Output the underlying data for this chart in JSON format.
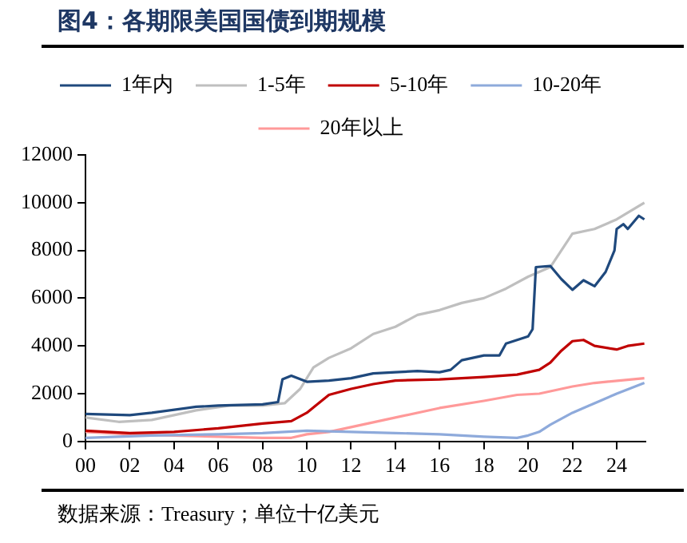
{
  "chart_data": {
    "type": "line",
    "title": "图4：各期限美国国债到期规模",
    "annotations": [
      "数据来源：Treasury；单位十亿美元"
    ],
    "xlim": [
      2000,
      2025.3
    ],
    "xticks": [
      {
        "value": 2000,
        "label": "00"
      },
      {
        "value": 2002,
        "label": "02"
      },
      {
        "value": 2004,
        "label": "04"
      },
      {
        "value": 2006,
        "label": "06"
      },
      {
        "value": 2008,
        "label": "08"
      },
      {
        "value": 2010,
        "label": "10"
      },
      {
        "value": 2012,
        "label": "12"
      },
      {
        "value": 2014,
        "label": "14"
      },
      {
        "value": 2016,
        "label": "16"
      },
      {
        "value": 2018,
        "label": "18"
      },
      {
        "value": 2020,
        "label": "20"
      },
      {
        "value": 2022,
        "label": "22"
      },
      {
        "value": 2024,
        "label": "24"
      }
    ],
    "ylim": [
      0,
      12000
    ],
    "yticks": [
      0,
      2000,
      4000,
      6000,
      8000,
      10000,
      12000
    ],
    "grid": false,
    "legend": "top",
    "marker": "none",
    "line_style": "solid",
    "series": [
      {
        "name": "1年内",
        "color": "#1f497d",
        "x": [
          2000,
          2002,
          2003,
          2005,
          2006,
          2008,
          2008.7,
          2008.9,
          2009.3,
          2010,
          2011,
          2012,
          2013,
          2014,
          2015,
          2016,
          2016.5,
          2017,
          2018,
          2018.7,
          2019,
          2020,
          2020.2,
          2020.35,
          2021,
          2021.5,
          2022,
          2022.5,
          2023,
          2023.5,
          2023.9,
          2024,
          2024.3,
          2024.5,
          2025,
          2025.25
        ],
        "values": [
          1150,
          1100,
          1200,
          1450,
          1500,
          1550,
          1650,
          2600,
          2750,
          2500,
          2550,
          2650,
          2850,
          2900,
          2950,
          2900,
          3000,
          3400,
          3600,
          3600,
          4100,
          4400,
          4700,
          7300,
          7350,
          6800,
          6350,
          6750,
          6500,
          7100,
          8000,
          8900,
          9100,
          8900,
          9450,
          9300
        ]
      },
      {
        "name": "1-5年",
        "color": "#bfbfbf",
        "x": [
          2000,
          2001.5,
          2003,
          2005,
          2006.5,
          2008,
          2009,
          2009.7,
          2010.3,
          2011,
          2012,
          2013,
          2014,
          2015,
          2016,
          2017,
          2018,
          2019,
          2020,
          2021,
          2022,
          2023,
          2024,
          2025.25
        ],
        "values": [
          1000,
          820,
          900,
          1300,
          1500,
          1500,
          1600,
          2200,
          3100,
          3500,
          3900,
          4500,
          4800,
          5300,
          5500,
          5800,
          6000,
          6400,
          6900,
          7300,
          8700,
          8900,
          9300,
          10000
        ]
      },
      {
        "name": "5-10年",
        "color": "#c00000",
        "x": [
          2000,
          2002,
          2004,
          2006,
          2008,
          2009.3,
          2010,
          2011,
          2012,
          2013,
          2014,
          2016,
          2018,
          2019.5,
          2020,
          2020.5,
          2021,
          2021.5,
          2022,
          2022.5,
          2023,
          2024,
          2024.5,
          2025.25
        ],
        "values": [
          450,
          350,
          400,
          550,
          750,
          850,
          1200,
          1950,
          2200,
          2400,
          2550,
          2600,
          2700,
          2800,
          2900,
          3000,
          3300,
          3800,
          4200,
          4250,
          4000,
          3850,
          4000,
          4100
        ]
      },
      {
        "name": "10-20年",
        "color": "#8eaadb",
        "x": [
          2000,
          2003,
          2006,
          2008,
          2010,
          2012,
          2014,
          2016,
          2018,
          2019.5,
          2020,
          2020.5,
          2021,
          2022,
          2023,
          2024,
          2025.25
        ],
        "values": [
          150,
          250,
          300,
          350,
          450,
          400,
          350,
          300,
          200,
          150,
          250,
          400,
          700,
          1200,
          1600,
          2000,
          2450
        ]
      },
      {
        "name": "20年以上",
        "color": "#ff9999",
        "x": [
          2000,
          2002,
          2004,
          2006,
          2008,
          2009.3,
          2010,
          2011,
          2012,
          2014,
          2016,
          2018,
          2019.5,
          2020.5,
          2022,
          2023,
          2025.25
        ],
        "values": [
          400,
          300,
          250,
          200,
          150,
          150,
          300,
          400,
          600,
          1000,
          1400,
          1700,
          1950,
          2000,
          2300,
          2450,
          2650
        ]
      }
    ]
  }
}
